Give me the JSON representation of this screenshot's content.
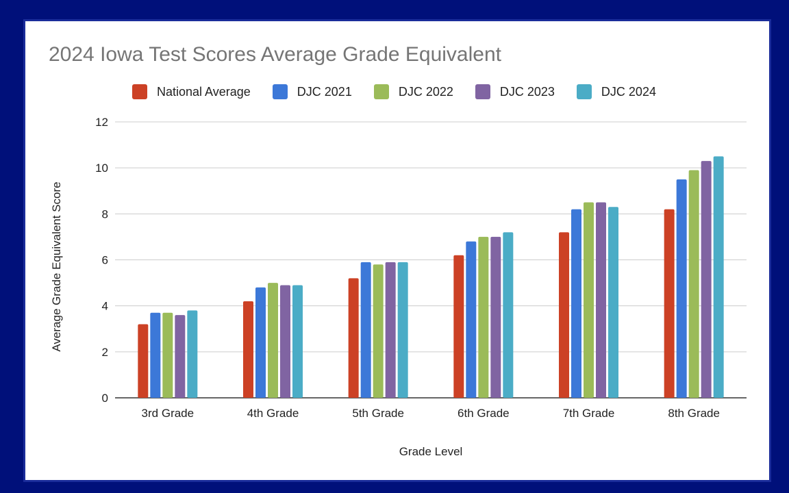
{
  "chart_data": {
    "type": "bar",
    "title": "2024 Iowa Test Scores Average Grade Equivalent",
    "xlabel": "Grade Level",
    "ylabel": "Average Grade Equivalent Score",
    "categories": [
      "3rd Grade",
      "4th Grade",
      "5th Grade",
      "6th Grade",
      "7th Grade",
      "8th Grade"
    ],
    "ylim": [
      0,
      12
    ],
    "yticks": [
      0,
      2,
      4,
      6,
      8,
      10,
      12
    ],
    "grid": true,
    "legend_position": "top",
    "series": [
      {
        "name": "National Average",
        "color": "#cc4125",
        "values": [
          3.2,
          4.2,
          5.2,
          6.2,
          7.2,
          8.2
        ]
      },
      {
        "name": "DJC 2021",
        "color": "#3c78d8",
        "values": [
          3.7,
          4.8,
          5.9,
          6.8,
          8.2,
          9.5
        ]
      },
      {
        "name": "DJC 2022",
        "color": "#9bbb59",
        "values": [
          3.7,
          5.0,
          5.8,
          7.0,
          8.5,
          9.9
        ]
      },
      {
        "name": "DJC 2023",
        "color": "#8064a2",
        "values": [
          3.6,
          4.9,
          5.9,
          7.0,
          8.5,
          10.3
        ]
      },
      {
        "name": "DJC 2024",
        "color": "#4bacc6",
        "values": [
          3.8,
          4.9,
          5.9,
          7.2,
          8.3,
          10.5
        ]
      }
    ]
  }
}
